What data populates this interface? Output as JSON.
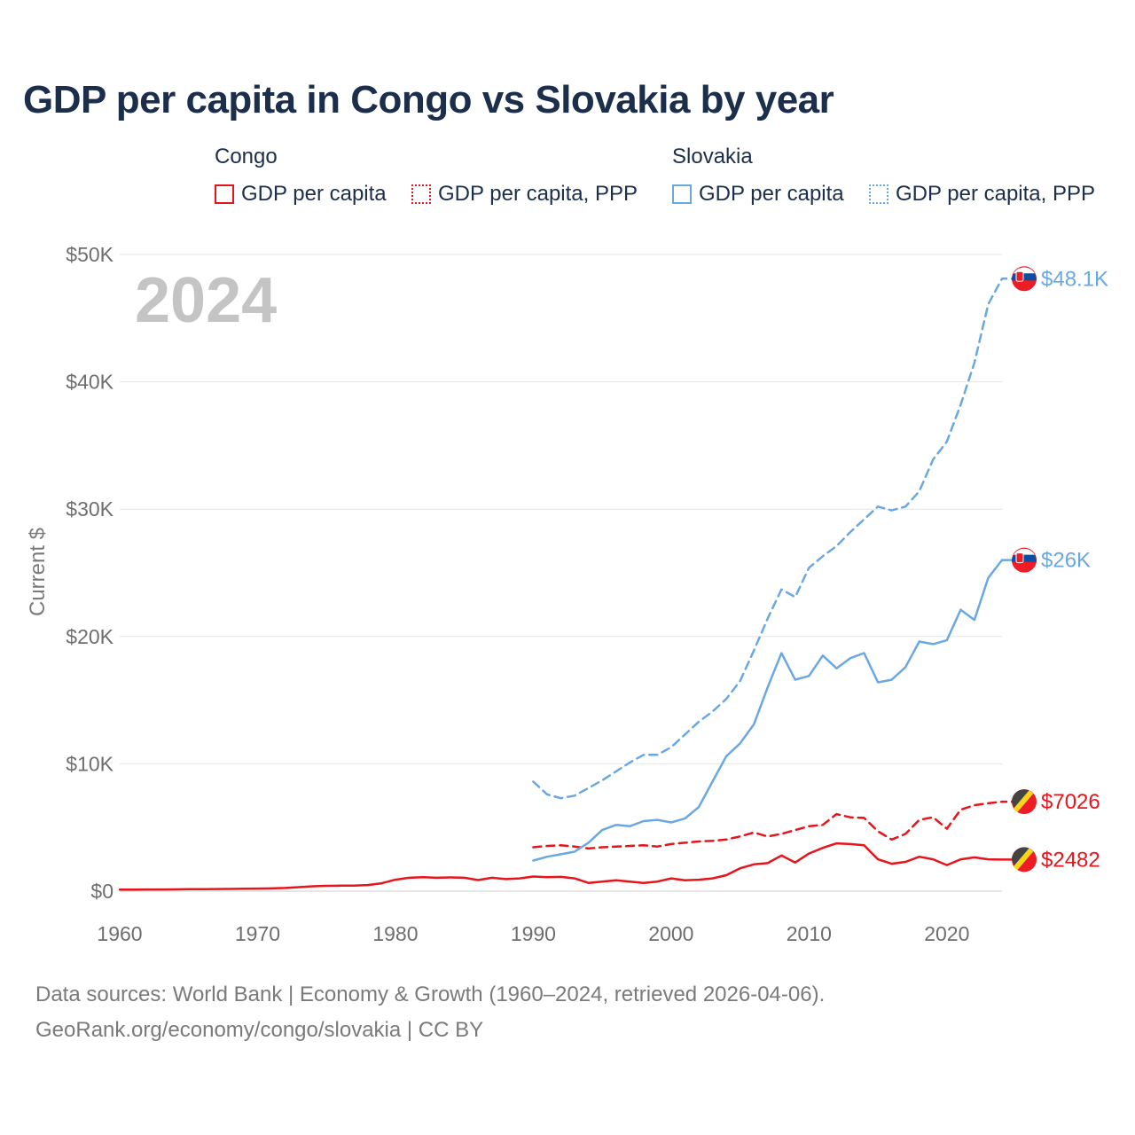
{
  "title": "GDP per capita in Congo vs Slovakia by year",
  "legend": {
    "congo_label": "Congo",
    "slovakia_label": "Slovakia",
    "items": [
      {
        "label": "GDP per capita",
        "color": "#e8141c",
        "style": "solid"
      },
      {
        "label": "GDP per capita, PPP",
        "color": "#e8141c",
        "style": "dotted"
      },
      {
        "label": "GDP per capita",
        "color": "#6aa8e3",
        "style": "solid"
      },
      {
        "label": "GDP per capita, PPP",
        "color": "#6aa8e3",
        "style": "dotted"
      }
    ]
  },
  "year_label": "2024",
  "footer": {
    "line1": "Data sources: World Bank | Economy & Growth (1960–2024, retrieved 2026-04-06).",
    "line2": "GeoRank.org/economy/congo/slovakia | CC BY"
  },
  "chart_data": {
    "type": "line",
    "title": "GDP per capita in Congo vs Slovakia by year",
    "xlabel": "",
    "ylabel": "Current $",
    "xlim": [
      1960,
      2024
    ],
    "ylim": [
      0,
      50000
    ],
    "x_ticks": [
      1960,
      1970,
      1980,
      1990,
      2000,
      2010,
      2020
    ],
    "y_ticks": [
      0,
      10000,
      20000,
      30000,
      40000,
      50000
    ],
    "y_tick_labels": [
      "$0",
      "$10K",
      "$20K",
      "$30K",
      "$40K",
      "$50K"
    ],
    "grid": true,
    "series": [
      {
        "name": "Congo GDP per capita",
        "color": "#e8141c",
        "dash": "solid",
        "end_label": "$2482",
        "x": [
          1960,
          1961,
          1962,
          1963,
          1964,
          1965,
          1966,
          1967,
          1968,
          1969,
          1970,
          1971,
          1972,
          1973,
          1974,
          1975,
          1976,
          1977,
          1978,
          1979,
          1980,
          1981,
          1982,
          1983,
          1984,
          1985,
          1986,
          1987,
          1988,
          1989,
          1990,
          1991,
          1992,
          1993,
          1994,
          1995,
          1996,
          1997,
          1998,
          1999,
          2000,
          2001,
          2002,
          2003,
          2004,
          2005,
          2006,
          2007,
          2008,
          2009,
          2010,
          2011,
          2012,
          2013,
          2014,
          2015,
          2016,
          2017,
          2018,
          2019,
          2020,
          2021,
          2022,
          2023,
          2024
        ],
        "values": [
          120,
          125,
          130,
          135,
          140,
          150,
          160,
          170,
          175,
          185,
          200,
          215,
          250,
          310,
          380,
          420,
          430,
          440,
          480,
          620,
          900,
          1050,
          1100,
          1050,
          1080,
          1050,
          870,
          1050,
          950,
          1000,
          1150,
          1100,
          1120,
          1000,
          650,
          750,
          850,
          750,
          650,
          750,
          1000,
          850,
          900,
          1000,
          1250,
          1800,
          2100,
          2200,
          2800,
          2250,
          2950,
          3400,
          3750,
          3700,
          3600,
          2500,
          2150,
          2300,
          2700,
          2500,
          2050,
          2500,
          2650,
          2500,
          2482
        ]
      },
      {
        "name": "Congo GDP per capita, PPP",
        "color": "#e8141c",
        "dash": "dashed",
        "end_label": "$7026",
        "x": [
          1990,
          1991,
          1992,
          1993,
          1994,
          1995,
          1996,
          1997,
          1998,
          1999,
          2000,
          2001,
          2002,
          2003,
          2004,
          2005,
          2006,
          2007,
          2008,
          2009,
          2010,
          2011,
          2012,
          2013,
          2014,
          2015,
          2016,
          2017,
          2018,
          2019,
          2020,
          2021,
          2022,
          2023,
          2024
        ],
        "values": [
          3450,
          3550,
          3600,
          3500,
          3350,
          3450,
          3500,
          3550,
          3600,
          3500,
          3700,
          3800,
          3900,
          3950,
          4050,
          4300,
          4600,
          4300,
          4500,
          4800,
          5100,
          5200,
          6050,
          5800,
          5750,
          4700,
          4050,
          4500,
          5600,
          5800,
          4900,
          6400,
          6750,
          6900,
          7026
        ]
      },
      {
        "name": "Slovakia GDP per capita",
        "color": "#6aa8e3",
        "dash": "solid",
        "end_label": "$26K",
        "x": [
          1990,
          1991,
          1992,
          1993,
          1994,
          1995,
          1996,
          1997,
          1998,
          1999,
          2000,
          2001,
          2002,
          2003,
          2004,
          2005,
          2006,
          2007,
          2008,
          2009,
          2010,
          2011,
          2012,
          2013,
          2014,
          2015,
          2016,
          2017,
          2018,
          2019,
          2020,
          2021,
          2022,
          2023,
          2024
        ],
        "values": [
          2400,
          2700,
          2900,
          3100,
          3800,
          4800,
          5200,
          5100,
          5500,
          5600,
          5400,
          5700,
          6600,
          8600,
          10600,
          11600,
          13100,
          16000,
          18700,
          16600,
          16900,
          18500,
          17500,
          18300,
          18700,
          16400,
          16600,
          17600,
          19600,
          19400,
          19700,
          22100,
          21300,
          24600,
          26000
        ]
      },
      {
        "name": "Slovakia GDP per capita, PPP",
        "color": "#6aa8e3",
        "dash": "dashed",
        "end_label": "$48.1K",
        "x": [
          1990,
          1991,
          1992,
          1993,
          1994,
          1995,
          1996,
          1997,
          1998,
          1999,
          2000,
          2001,
          2002,
          2003,
          2004,
          2005,
          2006,
          2007,
          2008,
          2009,
          2010,
          2011,
          2012,
          2013,
          2014,
          2015,
          2016,
          2017,
          2018,
          2019,
          2020,
          2021,
          2022,
          2023,
          2024
        ],
        "values": [
          8600,
          7600,
          7300,
          7500,
          8100,
          8700,
          9400,
          10100,
          10700,
          10700,
          11300,
          12300,
          13300,
          14100,
          15100,
          16500,
          18900,
          21400,
          23700,
          23100,
          25400,
          26300,
          27100,
          28200,
          29200,
          30200,
          29900,
          30200,
          31400,
          33900,
          35300,
          38200,
          41500,
          46100,
          48100
        ]
      }
    ]
  }
}
